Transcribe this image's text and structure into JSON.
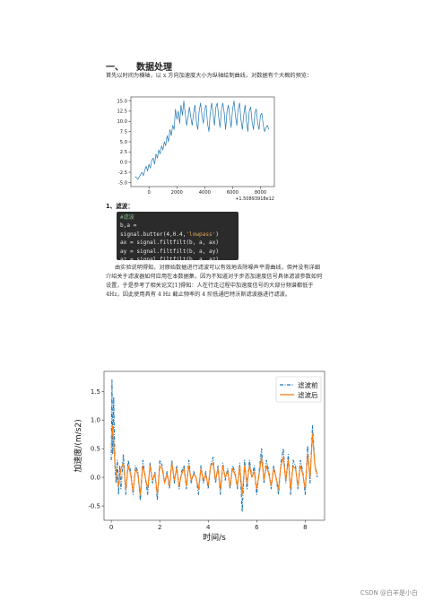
{
  "section": {
    "number": "一、",
    "title": "数据处理"
  },
  "paragraph1": "首先以时间为横轴，以 x 方向加速度大小为纵轴绘制曲线，对数据有个大概的预览：",
  "subheading": "1、滤波：",
  "code": {
    "comment": "#滤波",
    "line1_prefix": "b,a = signal.butter(4,0.4,",
    "line1_string": "'lowpass'",
    "line1_suffix": ")",
    "line2": "ax = signal.filtfilt(b, a, ax)",
    "line3": "ay = signal.filtfilt(b, a, ay)",
    "line4": "az = signal.filtfilt(b, a, az)"
  },
  "paragraph2": "由实验说明得知，对原始数据进行滤波可以有效地去除噪声平滑曲线，但并没有详细介绍关于滤波器如何应用在本数据集，因为不知道对于步态加速度信号具体滤波参数如何设置，于是参考了相关论文[1]得知：人在行走过程中加速度信号的大部分频谱都低于 4Hz，因此使用具有 4 Hz 截止频率的 4 阶低通巴特沃斯滤波器进行滤波。",
  "footer": "CSDN @白羊是小白",
  "chart_data": [
    {
      "type": "line",
      "title": "",
      "xlabel": "",
      "ylabel": "",
      "offset_label": "+1.50893918e12",
      "xlim": [
        -1300,
        9000
      ],
      "ylim": [
        -6,
        16
      ],
      "xticks": [
        0,
        2000,
        4000,
        6000,
        8000
      ],
      "xtick_labels": [
        "0",
        "2000",
        "4000",
        "6000",
        "8000"
      ],
      "yticks": [
        -5.0,
        -2.5,
        0.0,
        2.5,
        5.0,
        7.5,
        10.0,
        12.5,
        15.0
      ],
      "ytick_labels": [
        "-5.0",
        "-2.5",
        "0.0",
        "2.5",
        "5.0",
        "7.5",
        "10.0",
        "12.5",
        "15.0"
      ],
      "color": "#1f77b4",
      "series": [
        {
          "x": [
            -1000,
            -800,
            -600,
            -500,
            -400,
            -300,
            -200,
            -100,
            0,
            100,
            200,
            300,
            400,
            500,
            600,
            700,
            800,
            900,
            1000,
            1100,
            1200,
            1300,
            1400,
            1500,
            1600,
            1700,
            1800,
            1900,
            2000,
            2100,
            2200,
            2300,
            2400,
            2500,
            2600,
            2700,
            2800,
            2900,
            3000,
            3100,
            3200,
            3300,
            3400,
            3500,
            3600,
            3700,
            3800,
            3900,
            4000,
            4100,
            4200,
            4300,
            4400,
            4500,
            4600,
            4700,
            4800,
            4900,
            5000,
            5100,
            5200,
            5300,
            5400,
            5500,
            5600,
            5700,
            5800,
            5900,
            6000,
            6100,
            6200,
            6300,
            6400,
            6500,
            6600,
            6700,
            6800,
            6900,
            7000,
            7100,
            7200,
            7300,
            7400,
            7500,
            7600,
            7700,
            7800,
            7900,
            8000,
            8100,
            8200,
            8300,
            8400,
            8500,
            8600
          ],
          "y": [
            -3.5,
            -4.2,
            -3.0,
            -2.5,
            -3.3,
            -2.0,
            -1.0,
            -2.2,
            -0.5,
            -1.5,
            0.5,
            1.0,
            -0.5,
            2.0,
            1.0,
            3.0,
            2.0,
            4.0,
            3.0,
            5.0,
            4.0,
            6.5,
            5.0,
            8.0,
            6.5,
            9.0,
            8.0,
            13.0,
            10.5,
            12.5,
            9.5,
            14.0,
            11.5,
            15.0,
            12.0,
            9.0,
            11.0,
            13.5,
            11.0,
            9.0,
            12.0,
            14.0,
            10.0,
            8.0,
            12.5,
            14.5,
            11.5,
            9.5,
            13.0,
            14.0,
            9.5,
            7.5,
            12.0,
            14.5,
            12.0,
            9.0,
            13.5,
            14.5,
            11.0,
            8.5,
            13.0,
            14.5,
            12.0,
            8.0,
            12.5,
            14.0,
            11.0,
            8.5,
            13.0,
            15.0,
            11.5,
            9.0,
            13.0,
            14.5,
            10.5,
            8.0,
            11.5,
            14.0,
            10.0,
            7.5,
            12.5,
            13.5,
            10.0,
            8.0,
            12.0,
            13.0,
            9.5,
            8.0,
            11.5,
            12.0,
            9.0,
            7.5,
            8.5,
            9.0,
            8.0
          ]
        }
      ]
    },
    {
      "type": "line",
      "title": "",
      "xlabel": "时间/s",
      "ylabel": "加速度/(m/s2)",
      "xlim": [
        -0.3,
        8.8
      ],
      "ylim": [
        -0.75,
        1.85
      ],
      "xticks": [
        0,
        2,
        4,
        6,
        8
      ],
      "xtick_labels": [
        "0",
        "2",
        "4",
        "6",
        "8"
      ],
      "yticks": [
        -0.5,
        0.0,
        0.5,
        1.0,
        1.5
      ],
      "ytick_labels": [
        "-0.5",
        "0.0",
        "0.5",
        "1.0",
        "1.5"
      ],
      "legend_position": "top-right",
      "series": [
        {
          "name": "滤波前",
          "color": "#1f77b4",
          "style": "dashdot",
          "x": [
            0,
            0.03,
            0.06,
            0.1,
            0.15,
            0.2,
            0.25,
            0.3,
            0.35,
            0.4,
            0.5,
            0.6,
            0.7,
            0.8,
            0.9,
            1.0,
            1.1,
            1.2,
            1.3,
            1.4,
            1.5,
            1.6,
            1.7,
            1.8,
            1.9,
            2.0,
            2.1,
            2.2,
            2.3,
            2.4,
            2.5,
            2.6,
            2.7,
            2.8,
            2.9,
            3.0,
            3.1,
            3.2,
            3.3,
            3.4,
            3.5,
            3.6,
            3.7,
            3.8,
            3.9,
            4.0,
            4.1,
            4.2,
            4.3,
            4.4,
            4.5,
            4.6,
            4.7,
            4.8,
            4.9,
            5.0,
            5.1,
            5.2,
            5.3,
            5.4,
            5.5,
            5.6,
            5.7,
            5.8,
            5.9,
            6.0,
            6.1,
            6.2,
            6.3,
            6.4,
            6.5,
            6.6,
            6.7,
            6.8,
            6.9,
            7.0,
            7.1,
            7.2,
            7.3,
            7.4,
            7.5,
            7.6,
            7.7,
            7.8,
            7.9,
            8.0,
            8.1,
            8.2,
            8.3,
            8.4,
            8.5
          ],
          "y": [
            0.3,
            1.7,
            0.4,
            1.4,
            0.2,
            -0.1,
            0.3,
            -0.3,
            0.2,
            -0.2,
            0.4,
            -0.3,
            0.3,
            0.1,
            -0.3,
            0.2,
            0.1,
            -0.4,
            0.3,
            0.0,
            -0.3,
            0.25,
            -0.1,
            0.1,
            -0.4,
            0.3,
            0.2,
            -0.1,
            0.1,
            -0.2,
            0.3,
            -0.1,
            0.2,
            -0.2,
            0.1,
            0.2,
            -0.2,
            0.3,
            -0.1,
            0.1,
            0.0,
            -0.3,
            0.2,
            -0.1,
            0.1,
            -0.2,
            0.2,
            0.35,
            -0.1,
            0.2,
            -0.3,
            0.25,
            -0.05,
            0.15,
            -0.2,
            0.2,
            0.1,
            -0.2,
            0.25,
            -0.6,
            0.3,
            -0.2,
            0.3,
            0.0,
            0.2,
            -0.3,
            0.1,
            0.5,
            -0.1,
            0.3,
            0.1,
            -0.2,
            0.2,
            0.0,
            -0.3,
            0.25,
            0.5,
            -0.1,
            0.4,
            -0.3,
            0.3,
            0.2,
            -0.2,
            0.3,
            0.1,
            -0.3,
            0.55,
            -0.1,
            0.9,
            0.2,
            0.0
          ]
        },
        {
          "name": "滤波后",
          "color": "#ff7f0e",
          "style": "solid",
          "x": [
            0,
            0.05,
            0.1,
            0.15,
            0.2,
            0.3,
            0.4,
            0.5,
            0.6,
            0.7,
            0.8,
            0.9,
            1.0,
            1.1,
            1.2,
            1.3,
            1.4,
            1.5,
            1.6,
            1.7,
            1.8,
            1.9,
            2.0,
            2.1,
            2.2,
            2.3,
            2.4,
            2.5,
            2.6,
            2.7,
            2.8,
            2.9,
            3.0,
            3.1,
            3.2,
            3.3,
            3.4,
            3.5,
            3.6,
            3.7,
            3.8,
            3.9,
            4.0,
            4.1,
            4.2,
            4.3,
            4.4,
            4.5,
            4.6,
            4.7,
            4.8,
            4.9,
            5.0,
            5.1,
            5.2,
            5.3,
            5.4,
            5.5,
            5.6,
            5.7,
            5.8,
            5.9,
            6.0,
            6.1,
            6.2,
            6.3,
            6.4,
            6.5,
            6.6,
            6.7,
            6.8,
            6.9,
            7.0,
            7.1,
            7.2,
            7.3,
            7.4,
            7.5,
            7.6,
            7.7,
            7.8,
            7.9,
            8.0,
            8.1,
            8.2,
            8.3,
            8.4,
            8.5
          ],
          "y": [
            0.5,
            0.9,
            0.6,
            0.25,
            0.1,
            -0.15,
            0.15,
            0.25,
            -0.2,
            0.2,
            0.05,
            -0.25,
            0.15,
            0.05,
            -0.3,
            0.2,
            0.0,
            -0.2,
            0.2,
            -0.05,
            0.05,
            -0.3,
            0.2,
            0.15,
            -0.1,
            0.05,
            -0.15,
            0.25,
            -0.05,
            0.15,
            -0.15,
            0.05,
            0.15,
            -0.15,
            0.2,
            -0.05,
            0.05,
            0.0,
            -0.2,
            0.15,
            -0.05,
            0.05,
            -0.15,
            0.2,
            0.25,
            -0.05,
            0.15,
            -0.2,
            0.2,
            0.0,
            0.1,
            -0.15,
            0.15,
            0.05,
            -0.15,
            0.2,
            -0.3,
            0.2,
            -0.1,
            0.2,
            0.0,
            0.1,
            -0.2,
            0.05,
            0.35,
            -0.05,
            0.2,
            0.05,
            -0.15,
            0.15,
            0.0,
            -0.2,
            0.2,
            0.35,
            -0.05,
            0.3,
            -0.2,
            0.2,
            0.15,
            -0.15,
            0.2,
            0.05,
            -0.2,
            0.4,
            0.0,
            0.75,
            0.2,
            0.05
          ]
        }
      ]
    }
  ]
}
